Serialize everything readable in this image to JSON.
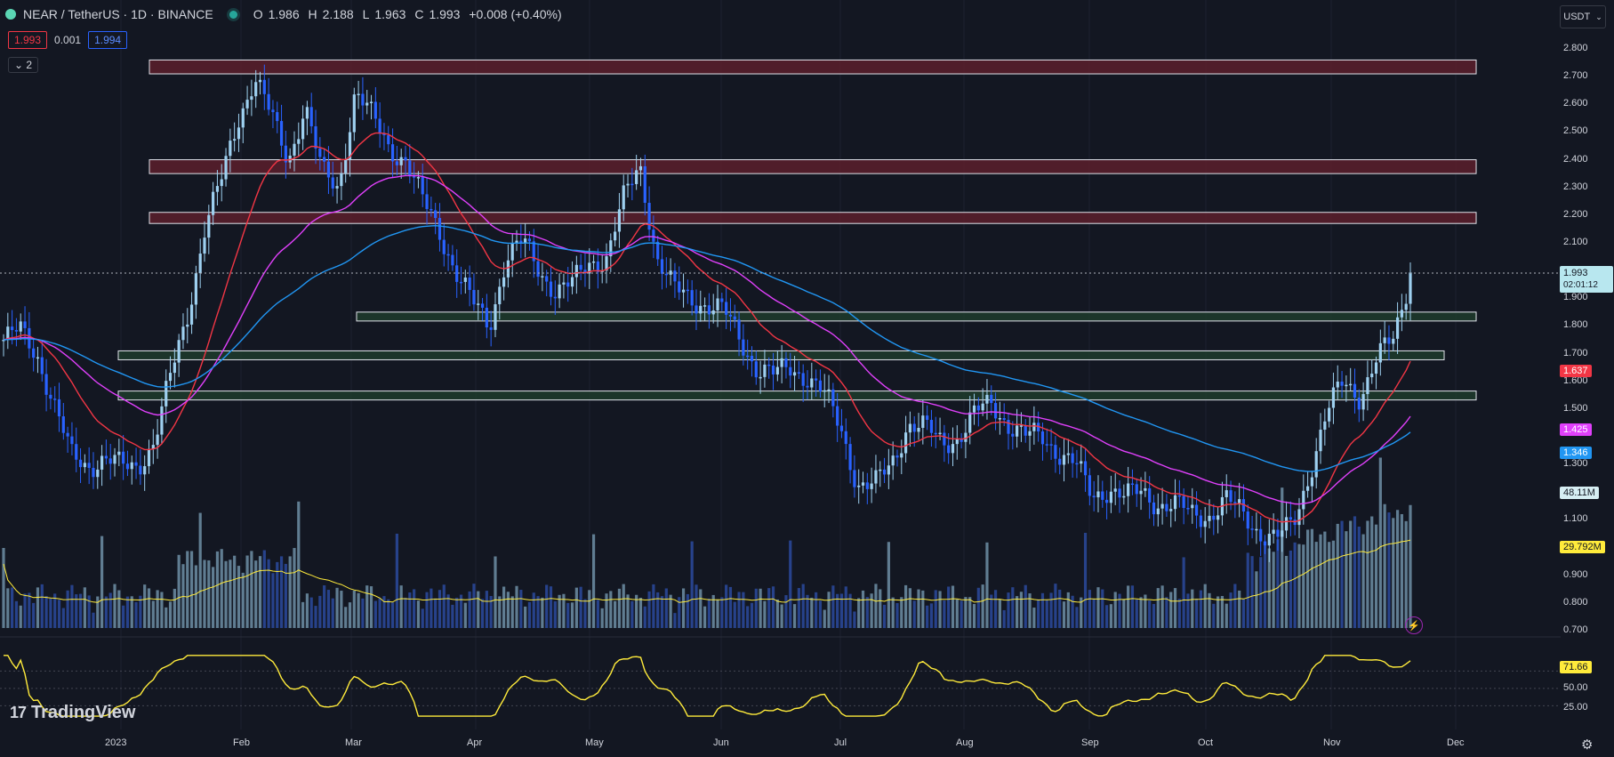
{
  "header": {
    "symbol": "NEAR / TetherUS · 1D · BINANCE",
    "open_label": "O",
    "open": "1.986",
    "high_label": "H",
    "high": "2.188",
    "low_label": "L",
    "low": "1.963",
    "close_label": "C",
    "close": "1.993",
    "change": "+0.008 (+0.40%)"
  },
  "quotes": {
    "bid": "1.993",
    "spread": "0.001",
    "ask": "1.994"
  },
  "indicators_collapsed": "2",
  "currency": "USDT",
  "price_axis": [
    "2.800",
    "2.700",
    "2.600",
    "2.500",
    "2.400",
    "2.300",
    "2.200",
    "2.100",
    "1.900",
    "1.800",
    "1.700",
    "1.600",
    "1.500",
    "1.300",
    "1.100",
    "0.900",
    "0.800",
    "0.700"
  ],
  "rsi_axis": [
    "50.00",
    "25.00"
  ],
  "badges": {
    "last_price": "1.993",
    "countdown": "02:01:12",
    "ema_fast": "1.637",
    "ema_mid": "1.425",
    "ema_slow": "1.346",
    "volume": "48.11M",
    "volume_ma": "29.792M",
    "rsi": "71.66"
  },
  "time_axis": [
    "2023",
    "Feb",
    "Mar",
    "Apr",
    "May",
    "Jun",
    "Jul",
    "Aug",
    "Sep",
    "Oct",
    "Nov",
    "Dec"
  ],
  "brand": "TradingView",
  "colors": {
    "up": "#9ed0f0",
    "down": "#2962ff",
    "ema_fast": "#f23645",
    "ema_mid": "#e040fb",
    "ema_slow": "#2196f3",
    "volume_ma": "#ffeb3b",
    "rsi": "#ffeb3b",
    "resistance": "#5c1f2c",
    "support": "#1f3b2b"
  },
  "chart_data": {
    "type": "candlestick",
    "ylim": [
      0.7,
      2.8
    ],
    "zones": [
      {
        "kind": "resistance",
        "from": 2.71,
        "to": 2.76
      },
      {
        "kind": "resistance",
        "from": 2.35,
        "to": 2.4
      },
      {
        "kind": "resistance",
        "from": 2.17,
        "to": 2.21
      },
      {
        "kind": "support",
        "from": 1.82,
        "to": 1.85
      },
      {
        "kind": "support",
        "from": 1.685,
        "to": 1.71
      },
      {
        "kind": "support",
        "from": 1.535,
        "to": 1.565
      }
    ],
    "price_path": [
      1.75,
      1.78,
      1.7,
      1.52,
      1.33,
      1.3,
      1.32,
      1.29,
      1.3,
      1.38,
      1.62,
      1.85,
      2.15,
      2.32,
      2.55,
      2.7,
      2.55,
      2.4,
      2.6,
      2.35,
      2.3,
      2.65,
      2.55,
      2.45,
      2.4,
      2.25,
      2.15,
      2.0,
      1.88,
      1.8,
      2.05,
      2.1,
      2.0,
      1.93,
      1.95,
      2.03,
      2.05,
      2.25,
      2.38,
      2.05,
      1.93,
      1.9,
      1.88,
      1.85,
      1.75,
      1.65,
      1.62,
      1.65,
      1.62,
      1.55,
      1.43,
      1.23,
      1.22,
      1.3,
      1.45,
      1.43,
      1.38,
      1.4,
      1.48,
      1.52,
      1.45,
      1.4,
      1.4,
      1.35,
      1.3,
      1.18,
      1.22,
      1.18,
      1.2,
      1.16,
      1.15,
      1.12,
      1.12,
      1.17,
      1.12,
      1.06,
      1.03,
      1.08,
      1.28,
      1.48,
      1.6,
      1.55,
      1.68,
      1.75,
      1.993
    ]
  }
}
